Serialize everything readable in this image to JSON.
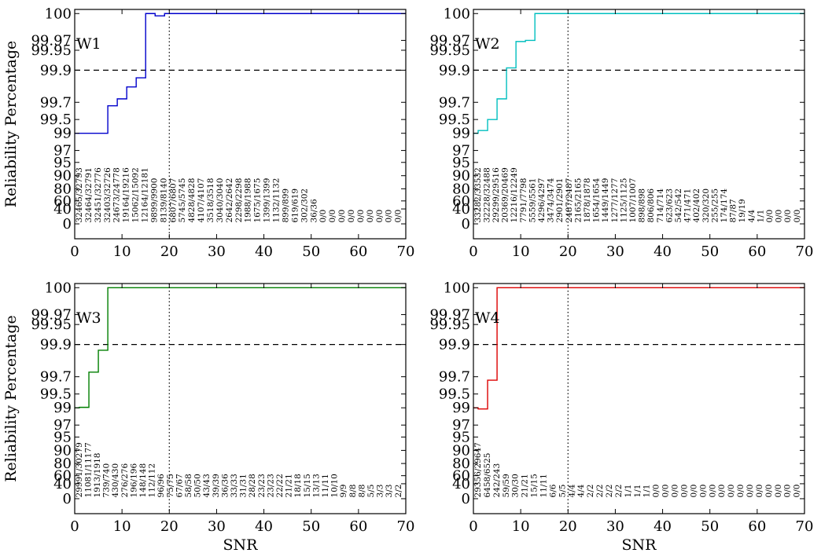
{
  "chart_data": [
    {
      "type": "line",
      "panel_label": "W1",
      "color": "#0000cc",
      "xlabel": "",
      "ylabel": "Reliability Percentage",
      "xlim": [
        0,
        70
      ],
      "x_ticks": [
        0,
        10,
        20,
        30,
        40,
        50,
        60,
        70
      ],
      "y_ticks": [
        "100",
        "99.97",
        "99.95",
        "99.9",
        "99.7",
        "99.5",
        "99",
        "97",
        "95",
        "90",
        "80",
        "60",
        "40",
        "0"
      ],
      "reference_line_y": "99.9",
      "reference_line_x": 20,
      "series": [
        {
          "step_x": [
            0,
            7,
            9,
            11,
            13,
            15,
            17,
            19,
            70
          ],
          "step_y": [
            "99",
            "99.6",
            "99.72",
            "99.8",
            "99.85",
            "100",
            "99.99",
            "100",
            "100"
          ]
        }
      ],
      "count_labels": [
        "32465/32793",
        "32464/32791",
        "32451/32776",
        "32403/32726",
        "24673/24778",
        "19164/19216",
        "15062/15092",
        "12164/12181",
        "9899/9900",
        "8139/8140",
        "6807/6807",
        "5745/5745",
        "4828/4828",
        "4107/4107",
        "3518/3518",
        "3040/3040",
        "2642/2642",
        "2298/2298",
        "1988/1988",
        "1675/1675",
        "1399/1399",
        "1132/1132",
        "899/899",
        "619/619",
        "302/302",
        "36/36",
        "0/0",
        "0/0",
        "0/0",
        "0/0",
        "0/0",
        "0/0",
        "0/0",
        "0/0",
        "0/0"
      ]
    },
    {
      "type": "line",
      "panel_label": "W2",
      "color": "#00bfbf",
      "xlabel": "",
      "ylabel": "",
      "xlim": [
        0,
        70
      ],
      "x_ticks": [
        0,
        10,
        20,
        30,
        40,
        50,
        60,
        70
      ],
      "y_ticks": [
        "100",
        "99.97",
        "99.95",
        "99.9",
        "99.7",
        "99.5",
        "99",
        "97",
        "95",
        "90",
        "80",
        "60",
        "40",
        "0"
      ],
      "reference_line_y": "99.9",
      "reference_line_x": 20,
      "series": [
        {
          "step_x": [
            0,
            1,
            3,
            5,
            7,
            9,
            11,
            13,
            70
          ],
          "step_y": [
            "99",
            "99.2",
            "99.5",
            "99.72",
            "99.91",
            "99.955",
            "99.97",
            "100",
            "100"
          ]
        }
      ],
      "count_labels": [
        "33282/33532",
        "32228/32488",
        "29299/29516",
        "20369/20469",
        "12216/12249",
        "7791/7798",
        "5559/5561",
        "4296/4297",
        "3474/3474",
        "2901/2901",
        "2487/2487",
        "2165/2165",
        "1878/1878",
        "1654/1654",
        "1449/1449",
        "1277/1277",
        "1125/1125",
        "1007/1007",
        "898/898",
        "806/806",
        "714/714",
        "623/623",
        "542/542",
        "471/471",
        "402/402",
        "320/320",
        "255/255",
        "174/174",
        "87/87",
        "19/19",
        "4/4",
        "1/1",
        "0/0",
        "0/0",
        "0/0",
        "0/0"
      ]
    },
    {
      "type": "line",
      "panel_label": "W3",
      "color": "#007f00",
      "xlabel": "SNR",
      "ylabel": "Reliability Percentage",
      "xlim": [
        0,
        70
      ],
      "x_ticks": [
        0,
        10,
        20,
        30,
        40,
        50,
        60,
        70
      ],
      "y_ticks": [
        "100",
        "99.97",
        "99.95",
        "99.9",
        "99.7",
        "99.5",
        "99",
        "97",
        "95",
        "90",
        "80",
        "60",
        "40",
        "0"
      ],
      "reference_line_y": "99.9",
      "reference_line_x": 20,
      "series": [
        {
          "step_x": [
            0,
            1,
            3,
            5,
            7,
            70
          ],
          "step_y": [
            "99",
            "99.1",
            "99.73",
            "99.86",
            "100",
            "100"
          ]
        }
      ],
      "count_labels": [
        "29991/30279",
        "11081/11177",
        "1913/1918",
        "739/740",
        "430/430",
        "276/276",
        "196/196",
        "148/148",
        "112/112",
        "96/96",
        "75/75",
        "67/67",
        "58/58",
        "50/50",
        "43/43",
        "39/39",
        "36/36",
        "33/33",
        "31/31",
        "28/28",
        "23/23",
        "23/23",
        "22/22",
        "21/21",
        "18/18",
        "15/15",
        "13/13",
        "11/11",
        "10/10",
        "9/9",
        "8/8",
        "8/8",
        "5/5",
        "3/3",
        "3/3",
        "2/2"
      ]
    },
    {
      "type": "line",
      "panel_label": "W4",
      "color": "#dd0000",
      "xlabel": "SNR",
      "ylabel": "",
      "xlim": [
        0,
        70
      ],
      "x_ticks": [
        0,
        10,
        20,
        30,
        40,
        50,
        60,
        70
      ],
      "y_ticks": [
        "100",
        "99.97",
        "99.95",
        "99.9",
        "99.7",
        "99.5",
        "99",
        "97",
        "95",
        "90",
        "80",
        "60",
        "40",
        "0"
      ],
      "reference_line_y": "99.9",
      "reference_line_x": 20,
      "series": [
        {
          "step_x": [
            0,
            1,
            3,
            5,
            70
          ],
          "step_y": [
            "99",
            "98.95",
            "99.62",
            "100",
            "100"
          ]
        }
      ],
      "count_labels": [
        "29356/29647",
        "6458/6525",
        "242/243",
        "59/59",
        "30/30",
        "21/21",
        "15/15",
        "11/11",
        "6/6",
        "5/5",
        "4/4",
        "4/4",
        "2/2",
        "2/2",
        "2/2",
        "2/2",
        "1/1",
        "1/1",
        "1/1",
        "0/0",
        "0/0",
        "0/0",
        "0/0",
        "0/0",
        "0/0",
        "0/0",
        "0/0",
        "0/0",
        "0/0",
        "0/0",
        "0/0",
        "0/0",
        "0/0",
        "0/0",
        "0/0"
      ]
    }
  ]
}
